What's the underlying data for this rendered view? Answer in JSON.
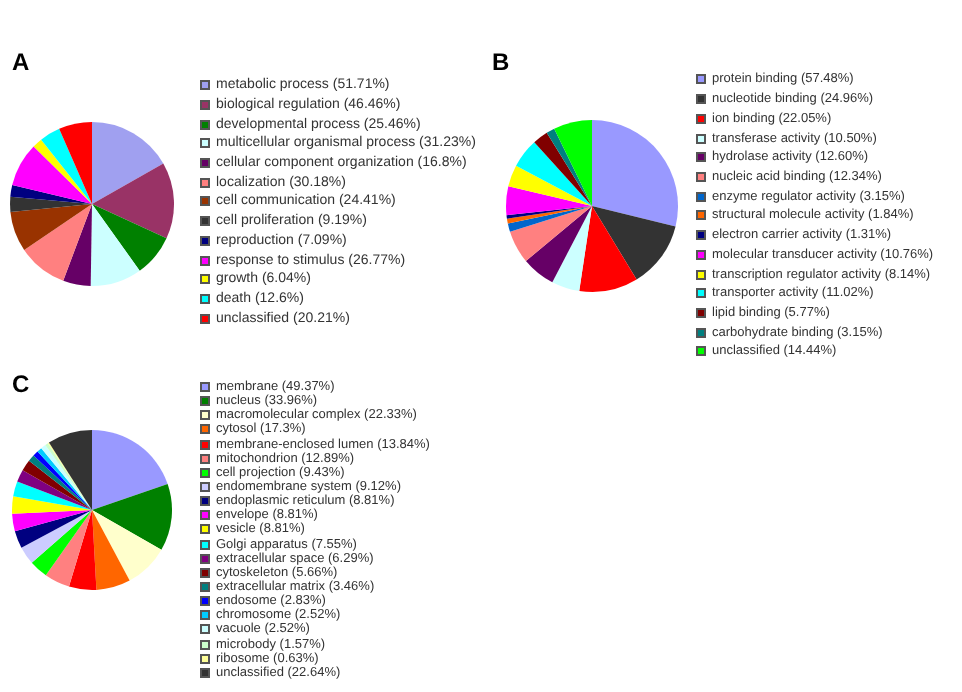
{
  "chart_data": [
    {
      "type": "pie",
      "title": "A",
      "legend": "right",
      "categories": [
        "metabolic process (51.71%)",
        "biological regulation (46.46%)",
        "developmental process (25.46%)",
        "multicellular organismal process (31.23%)",
        "cellular component organization (16.8%)",
        "localization (30.18%)",
        "cell communication (24.41%)",
        "cell proliferation (9.19%)",
        "reproduction (7.09%)",
        "response to stimulus (26.77%)",
        "growth (6.04%)",
        "death (12.6%)",
        "unclassified (20.21%)"
      ],
      "values": [
        51.71,
        46.46,
        25.46,
        31.23,
        16.8,
        30.18,
        24.41,
        9.19,
        7.09,
        26.77,
        6.04,
        12.6,
        20.21
      ],
      "colors": [
        "#a0a0f0",
        "#993366",
        "#008000",
        "#ccffff",
        "#660066",
        "#ff8080",
        "#993300",
        "#333333",
        "#000080",
        "#ff00ff",
        "#ffff00",
        "#00ffff",
        "#ff0000"
      ]
    },
    {
      "type": "pie",
      "title": "B",
      "legend": "right",
      "categories": [
        "protein binding (57.48%)",
        "nucleotide binding (24.96%)",
        "ion binding (22.05%)",
        "transferase activity (10.50%)",
        "hydrolase activity (12.60%)",
        "nucleic acid binding (12.34%)",
        "enzyme regulator activity (3.15%)",
        "structural molecule activity (1.84%)",
        "electron carrier activity (1.31%)",
        "molecular transducer activity (10.76%)",
        "transcription regulator activity (8.14%)",
        "transporter activity (11.02%)",
        "lipid binding (5.77%)",
        "carbohydrate binding (3.15%)",
        "unclassified (14.44%)"
      ],
      "values": [
        57.48,
        24.96,
        22.05,
        10.5,
        12.6,
        12.34,
        3.15,
        1.84,
        1.31,
        10.76,
        8.14,
        11.02,
        5.77,
        3.15,
        14.44
      ],
      "colors": [
        "#9999ff",
        "#333333",
        "#ff0000",
        "#ccffff",
        "#660066",
        "#ff8080",
        "#0066cc",
        "#ff6600",
        "#000080",
        "#ff00ff",
        "#ffff00",
        "#00ffff",
        "#800000",
        "#008080",
        "#00ff00"
      ]
    },
    {
      "type": "pie",
      "title": "C",
      "legend": "right",
      "categories": [
        "membrane (49.37%)",
        "nucleus (33.96%)",
        "macromolecular complex (22.33%)",
        "cytosol (17.3%)",
        "membrane-enclosed lumen (13.84%)",
        "mitochondrion (12.89%)",
        "cell projection (9.43%)",
        "endomembrane system (9.12%)",
        "endoplasmic reticulum (8.81%)",
        "envelope (8.81%)",
        "vesicle (8.81%)",
        "Golgi apparatus (7.55%)",
        "extracellular space (6.29%)",
        "cytoskeleton (5.66%)",
        "extracellular matrix (3.46%)",
        "endosome (2.83%)",
        "chromosome (2.52%)",
        "vacuole (2.52%)",
        "microbody (1.57%)",
        "ribosome (0.63%)",
        "unclassified (22.64%)"
      ],
      "values": [
        49.37,
        33.96,
        22.33,
        17.3,
        13.84,
        12.89,
        9.43,
        9.12,
        8.81,
        8.81,
        8.81,
        7.55,
        6.29,
        5.66,
        3.46,
        2.83,
        2.52,
        2.52,
        1.57,
        0.63,
        22.64
      ],
      "colors": [
        "#9999ff",
        "#008000",
        "#ffffcc",
        "#ff6600",
        "#ff0000",
        "#ff8080",
        "#00ff00",
        "#ccccff",
        "#000080",
        "#ff00ff",
        "#ffff00",
        "#00ffff",
        "#800080",
        "#800000",
        "#008080",
        "#0000ff",
        "#00ccff",
        "#ccffff",
        "#ccffcc",
        "#ffff99",
        "#333333"
      ]
    }
  ]
}
